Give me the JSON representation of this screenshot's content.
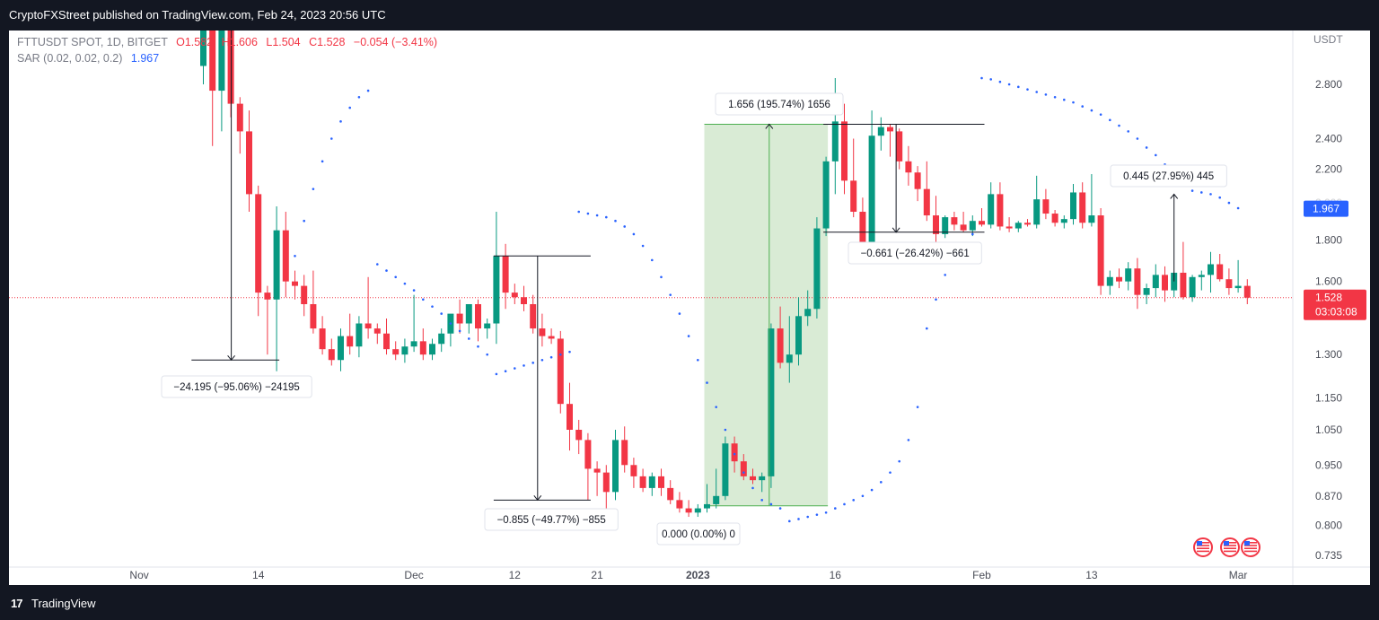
{
  "header": {
    "publish_text": "CryptoFXStreet published on TradingView.com, Feb 24, 2023 20:56 UTC"
  },
  "footer": {
    "brand": "TradingView",
    "logo_icon": "tradingview-logo-icon"
  },
  "legend": {
    "symbol": "FTTUSDT SPOT, 1D, BITGET",
    "open": "O1.582",
    "high": "H1.606",
    "low": "L1.504",
    "close": "C1.528",
    "change": "−0.054 (−3.41%)",
    "sar_label": "SAR (0.02, 0.02, 0.2)",
    "sar_value": "1.967"
  },
  "colors": {
    "up": "#089981",
    "down": "#f23645",
    "sar": "#2962ff",
    "range_fill": "#d7ead3",
    "range_line": "#4caf50",
    "price_tag": "#f23645",
    "sar_tag": "#2962ff"
  },
  "chart_data": {
    "type": "candlestick",
    "unit": "USDT",
    "y_scale": "log",
    "ylim": [
      0.7,
      3.2
    ],
    "y_ticks": [
      {
        "v": 2.8,
        "label": "2.800"
      },
      {
        "v": 2.4,
        "label": "2.400"
      },
      {
        "v": 2.2,
        "label": "2.200"
      },
      {
        "v": 1.8,
        "label": "1.800"
      },
      {
        "v": 1.6,
        "label": "1.600"
      },
      {
        "v": 1.3,
        "label": "1.300"
      },
      {
        "v": 1.15,
        "label": "1.150"
      },
      {
        "v": 1.05,
        "label": "1.050"
      },
      {
        "v": 0.95,
        "label": "0.950"
      },
      {
        "v": 0.87,
        "label": "0.870"
      },
      {
        "v": 0.8,
        "label": "0.800"
      },
      {
        "v": 0.735,
        "label": "0.735"
      }
    ],
    "x_ticks": [
      {
        "date": "2022-11-01",
        "label": "Nov"
      },
      {
        "date": "2022-11-14",
        "label": "14"
      },
      {
        "date": "2022-12-01",
        "label": "Dec"
      },
      {
        "date": "2022-12-12",
        "label": "12"
      },
      {
        "date": "2022-12-21",
        "label": "21"
      },
      {
        "date": "2023-01-01",
        "label": "2023"
      },
      {
        "date": "2023-01-16",
        "label": "16"
      },
      {
        "date": "2023-02-01",
        "label": "Feb"
      },
      {
        "date": "2023-02-13",
        "label": "13"
      },
      {
        "date": "2023-03-01",
        "label": "Mar"
      }
    ],
    "first_date": "2022-11-08",
    "candles": [
      [
        2.95,
        3.4,
        2.8,
        3.3
      ],
      [
        3.3,
        3.5,
        2.35,
        2.75
      ],
      [
        2.75,
        3.6,
        2.45,
        3.5
      ],
      [
        3.5,
        3.7,
        2.55,
        2.65
      ],
      [
        2.65,
        2.7,
        2.3,
        2.45
      ],
      [
        2.45,
        2.6,
        1.95,
        2.05
      ],
      [
        2.05,
        2.1,
        1.45,
        1.55
      ],
      [
        1.55,
        1.58,
        1.3,
        1.52
      ],
      [
        1.52,
        1.98,
        1.24,
        1.85
      ],
      [
        1.85,
        1.95,
        1.53,
        1.6
      ],
      [
        1.6,
        1.65,
        1.52,
        1.58
      ],
      [
        1.58,
        1.63,
        1.45,
        1.5
      ],
      [
        1.5,
        1.65,
        1.38,
        1.4
      ],
      [
        1.4,
        1.45,
        1.3,
        1.32
      ],
      [
        1.32,
        1.36,
        1.26,
        1.28
      ],
      [
        1.28,
        1.4,
        1.24,
        1.37
      ],
      [
        1.37,
        1.46,
        1.3,
        1.33
      ],
      [
        1.33,
        1.45,
        1.29,
        1.42
      ],
      [
        1.42,
        1.62,
        1.36,
        1.4
      ],
      [
        1.4,
        1.42,
        1.34,
        1.38
      ],
      [
        1.38,
        1.44,
        1.3,
        1.32
      ],
      [
        1.32,
        1.35,
        1.28,
        1.3
      ],
      [
        1.3,
        1.36,
        1.27,
        1.33
      ],
      [
        1.33,
        1.54,
        1.31,
        1.35
      ],
      [
        1.35,
        1.4,
        1.28,
        1.3
      ],
      [
        1.3,
        1.36,
        1.28,
        1.34
      ],
      [
        1.34,
        1.4,
        1.31,
        1.38
      ],
      [
        1.38,
        1.45,
        1.33,
        1.46
      ],
      [
        1.46,
        1.52,
        1.38,
        1.42
      ],
      [
        1.42,
        1.49,
        1.38,
        1.5
      ],
      [
        1.5,
        1.52,
        1.35,
        1.4
      ],
      [
        1.4,
        1.44,
        1.36,
        1.42
      ],
      [
        1.42,
        1.95,
        1.34,
        1.72
      ],
      [
        1.72,
        1.78,
        1.48,
        1.55
      ],
      [
        1.55,
        1.59,
        1.5,
        1.53
      ],
      [
        1.53,
        1.58,
        1.47,
        1.5
      ],
      [
        1.5,
        1.54,
        1.38,
        1.4
      ],
      [
        1.4,
        1.46,
        1.33,
        1.37
      ],
      [
        1.37,
        1.4,
        1.34,
        1.36
      ],
      [
        1.36,
        1.39,
        1.1,
        1.13
      ],
      [
        1.13,
        1.2,
        0.99,
        1.05
      ],
      [
        1.05,
        1.08,
        0.98,
        1.02
      ],
      [
        1.02,
        1.04,
        0.86,
        0.94
      ],
      [
        0.94,
        0.96,
        0.87,
        0.93
      ],
      [
        0.93,
        0.95,
        0.83,
        0.88
      ],
      [
        0.88,
        1.05,
        0.86,
        1.02
      ],
      [
        1.02,
        1.06,
        0.93,
        0.95
      ],
      [
        0.95,
        0.97,
        0.89,
        0.92
      ],
      [
        0.92,
        0.94,
        0.88,
        0.89
      ],
      [
        0.89,
        0.93,
        0.87,
        0.92
      ],
      [
        0.92,
        0.94,
        0.87,
        0.89
      ],
      [
        0.89,
        0.91,
        0.85,
        0.86
      ],
      [
        0.86,
        0.88,
        0.83,
        0.84
      ],
      [
        0.84,
        0.86,
        0.82,
        0.83
      ],
      [
        0.83,
        0.85,
        0.82,
        0.84
      ],
      [
        0.84,
        0.9,
        0.83,
        0.85
      ],
      [
        0.85,
        0.94,
        0.84,
        0.87
      ],
      [
        0.87,
        1.03,
        0.86,
        1.01
      ],
      [
        1.01,
        1.03,
        0.93,
        0.96
      ],
      [
        0.96,
        0.98,
        0.91,
        0.92
      ],
      [
        0.92,
        0.94,
        0.9,
        0.91
      ],
      [
        0.91,
        0.93,
        0.88,
        0.92
      ],
      [
        0.92,
        1.42,
        0.89,
        1.4
      ],
      [
        1.4,
        1.49,
        1.25,
        1.27
      ],
      [
        1.27,
        1.45,
        1.2,
        1.3
      ],
      [
        1.3,
        1.53,
        1.26,
        1.45
      ],
      [
        1.45,
        1.56,
        1.41,
        1.48
      ],
      [
        1.48,
        1.92,
        1.44,
        1.86
      ],
      [
        1.86,
        2.28,
        1.82,
        2.25
      ],
      [
        2.25,
        2.85,
        2.05,
        2.52
      ],
      [
        2.52,
        2.65,
        2.05,
        2.13
      ],
      [
        2.13,
        2.4,
        1.92,
        1.95
      ],
      [
        1.95,
        2.03,
        1.75,
        1.78
      ],
      [
        1.78,
        2.6,
        1.76,
        2.42
      ],
      [
        2.42,
        2.55,
        2.32,
        2.48
      ],
      [
        2.48,
        2.5,
        2.28,
        2.45
      ],
      [
        2.45,
        2.47,
        2.2,
        2.25
      ],
      [
        2.25,
        2.35,
        2.1,
        2.18
      ],
      [
        2.18,
        2.22,
        2.01,
        2.08
      ],
      [
        2.08,
        2.25,
        1.9,
        1.93
      ],
      [
        1.93,
        2.04,
        1.78,
        1.83
      ],
      [
        1.83,
        1.93,
        1.81,
        1.92
      ],
      [
        1.92,
        1.95,
        1.85,
        1.88
      ],
      [
        1.88,
        1.95,
        1.84,
        1.85
      ],
      [
        1.85,
        1.93,
        1.82,
        1.9
      ],
      [
        1.9,
        1.97,
        1.87,
        1.88
      ],
      [
        1.88,
        2.12,
        1.86,
        2.05
      ],
      [
        2.05,
        2.12,
        1.85,
        1.87
      ],
      [
        1.87,
        1.92,
        1.84,
        1.86
      ],
      [
        1.86,
        1.9,
        1.84,
        1.89
      ],
      [
        1.89,
        1.91,
        1.87,
        1.88
      ],
      [
        1.88,
        2.16,
        1.86,
        2.02
      ],
      [
        2.02,
        2.08,
        1.91,
        1.94
      ],
      [
        1.94,
        1.96,
        1.87,
        1.89
      ],
      [
        1.89,
        1.93,
        1.86,
        1.91
      ],
      [
        1.91,
        2.11,
        1.88,
        2.06
      ],
      [
        2.06,
        2.12,
        1.86,
        1.89
      ],
      [
        1.89,
        2.17,
        1.87,
        1.93
      ],
      [
        1.93,
        1.97,
        1.54,
        1.58
      ],
      [
        1.58,
        1.65,
        1.54,
        1.62
      ],
      [
        1.62,
        1.66,
        1.57,
        1.6
      ],
      [
        1.6,
        1.69,
        1.56,
        1.66
      ],
      [
        1.66,
        1.71,
        1.48,
        1.54
      ],
      [
        1.54,
        1.59,
        1.5,
        1.57
      ],
      [
        1.57,
        1.68,
        1.53,
        1.63
      ],
      [
        1.63,
        1.67,
        1.51,
        1.56
      ],
      [
        1.56,
        1.63,
        1.53,
        1.64
      ],
      [
        1.64,
        1.79,
        1.52,
        1.53
      ],
      [
        1.53,
        1.63,
        1.51,
        1.62
      ],
      [
        1.62,
        1.65,
        1.56,
        1.63
      ],
      [
        1.63,
        1.74,
        1.55,
        1.68
      ],
      [
        1.68,
        1.73,
        1.6,
        1.61
      ],
      [
        1.61,
        1.66,
        1.54,
        1.57
      ],
      [
        1.57,
        1.7,
        1.55,
        1.58
      ],
      [
        1.58,
        1.61,
        1.5,
        1.528
      ]
    ],
    "sar": [
      [
        10,
        1.72
      ],
      [
        11,
        1.9
      ],
      [
        12,
        2.08
      ],
      [
        13,
        2.25
      ],
      [
        14,
        2.4
      ],
      [
        15,
        2.52
      ],
      [
        16,
        2.62
      ],
      [
        17,
        2.7
      ],
      [
        18,
        2.75
      ],
      [
        19,
        1.68
      ],
      [
        20,
        1.65
      ],
      [
        21,
        1.62
      ],
      [
        22,
        1.59
      ],
      [
        23,
        1.56
      ],
      [
        24,
        1.52
      ],
      [
        25,
        1.49
      ],
      [
        26,
        1.46
      ],
      [
        27,
        1.42
      ],
      [
        28,
        1.39
      ],
      [
        29,
        1.36
      ],
      [
        30,
        1.33
      ],
      [
        31,
        1.3
      ],
      [
        32,
        1.23
      ],
      [
        33,
        1.24
      ],
      [
        34,
        1.25
      ],
      [
        35,
        1.26
      ],
      [
        36,
        1.27
      ],
      [
        37,
        1.28
      ],
      [
        38,
        1.29
      ],
      [
        39,
        1.3
      ],
      [
        40,
        1.31
      ],
      [
        41,
        1.95
      ],
      [
        42,
        1.94
      ],
      [
        43,
        1.93
      ],
      [
        44,
        1.92
      ],
      [
        45,
        1.9
      ],
      [
        46,
        1.87
      ],
      [
        47,
        1.83
      ],
      [
        48,
        1.77
      ],
      [
        49,
        1.7
      ],
      [
        50,
        1.62
      ],
      [
        51,
        1.54
      ],
      [
        52,
        1.46
      ],
      [
        53,
        1.37
      ],
      [
        54,
        1.28
      ],
      [
        55,
        1.2
      ],
      [
        56,
        1.12
      ],
      [
        57,
        1.05
      ],
      [
        58,
        0.98
      ],
      [
        59,
        0.93
      ],
      [
        60,
        0.89
      ],
      [
        61,
        0.86
      ],
      [
        62,
        0.85
      ],
      [
        63,
        0.84
      ],
      [
        64,
        0.81
      ],
      [
        65,
        0.815
      ],
      [
        66,
        0.82
      ],
      [
        67,
        0.825
      ],
      [
        68,
        0.83
      ],
      [
        69,
        0.84
      ],
      [
        70,
        0.85
      ],
      [
        71,
        0.86
      ],
      [
        72,
        0.87
      ],
      [
        73,
        0.885
      ],
      [
        74,
        0.905
      ],
      [
        75,
        0.93
      ],
      [
        76,
        0.96
      ],
      [
        77,
        1.02
      ],
      [
        78,
        1.12
      ],
      [
        79,
        1.4
      ],
      [
        80,
        1.52
      ],
      [
        81,
        1.63
      ],
      [
        82,
        1.72
      ],
      [
        83,
        1.78
      ],
      [
        84,
        1.83
      ],
      [
        85,
        2.85
      ],
      [
        86,
        2.84
      ],
      [
        87,
        2.82
      ],
      [
        88,
        2.8
      ],
      [
        89,
        2.78
      ],
      [
        90,
        2.76
      ],
      [
        91,
        2.74
      ],
      [
        92,
        2.72
      ],
      [
        93,
        2.7
      ],
      [
        94,
        2.68
      ],
      [
        95,
        2.66
      ],
      [
        96,
        2.63
      ],
      [
        97,
        2.6
      ],
      [
        98,
        2.57
      ],
      [
        99,
        2.53
      ],
      [
        100,
        2.49
      ],
      [
        101,
        2.45
      ],
      [
        102,
        2.4
      ],
      [
        103,
        2.34
      ],
      [
        104,
        2.29
      ],
      [
        105,
        2.23
      ],
      [
        106,
        2.17
      ],
      [
        107,
        2.1
      ],
      [
        108,
        2.07
      ],
      [
        109,
        2.06
      ],
      [
        110,
        2.05
      ],
      [
        111,
        2.03
      ],
      [
        112,
        2.0
      ],
      [
        113,
        1.97
      ]
    ],
    "last_price": {
      "value": 1.528,
      "label": "1.528",
      "countdown": "03:03:08"
    },
    "sar_tag": {
      "value": 1.967,
      "label": "1.967"
    },
    "hidden_tick_label": "2.000",
    "measurements": [
      {
        "label": "−24.195 (−95.06%) −24195",
        "i0": -1,
        "i1": 8,
        "from": 3.6,
        "to": 1.28,
        "direction": "down",
        "box_x": 170,
        "box_y": 385
      },
      {
        "label": "−0.855 (−49.77%) −855",
        "i0": 32,
        "i1": 42,
        "from": 1.72,
        "to": 0.86,
        "direction": "down",
        "box_x": 530,
        "box_y": 533
      },
      {
        "label": "1.656 (195.74%) 1656",
        "i0": 55,
        "i1": 68,
        "from": 0.846,
        "to": 2.5,
        "direction": "up",
        "box_x": 787,
        "box_y": 70,
        "filled": true
      },
      {
        "label": "0.000 (0.00%) 0",
        "box_x": 722,
        "box_y": 549,
        "small": true
      },
      {
        "label": "−0.661 (−26.42%) −661",
        "i0": 68,
        "i1": 85,
        "from": 2.5,
        "to": 1.84,
        "direction": "down",
        "box_x": 935,
        "box_y": 236
      },
      {
        "label": "0.445 (27.95%) 445",
        "i0": 106,
        "i1": 106,
        "from": 1.6,
        "to": 2.05,
        "direction": "up",
        "box_x": 1227,
        "box_y": 150
      }
    ],
    "flags": [
      "us-flag-icon",
      "us-flag-icon",
      "us-flag-icon"
    ]
  }
}
